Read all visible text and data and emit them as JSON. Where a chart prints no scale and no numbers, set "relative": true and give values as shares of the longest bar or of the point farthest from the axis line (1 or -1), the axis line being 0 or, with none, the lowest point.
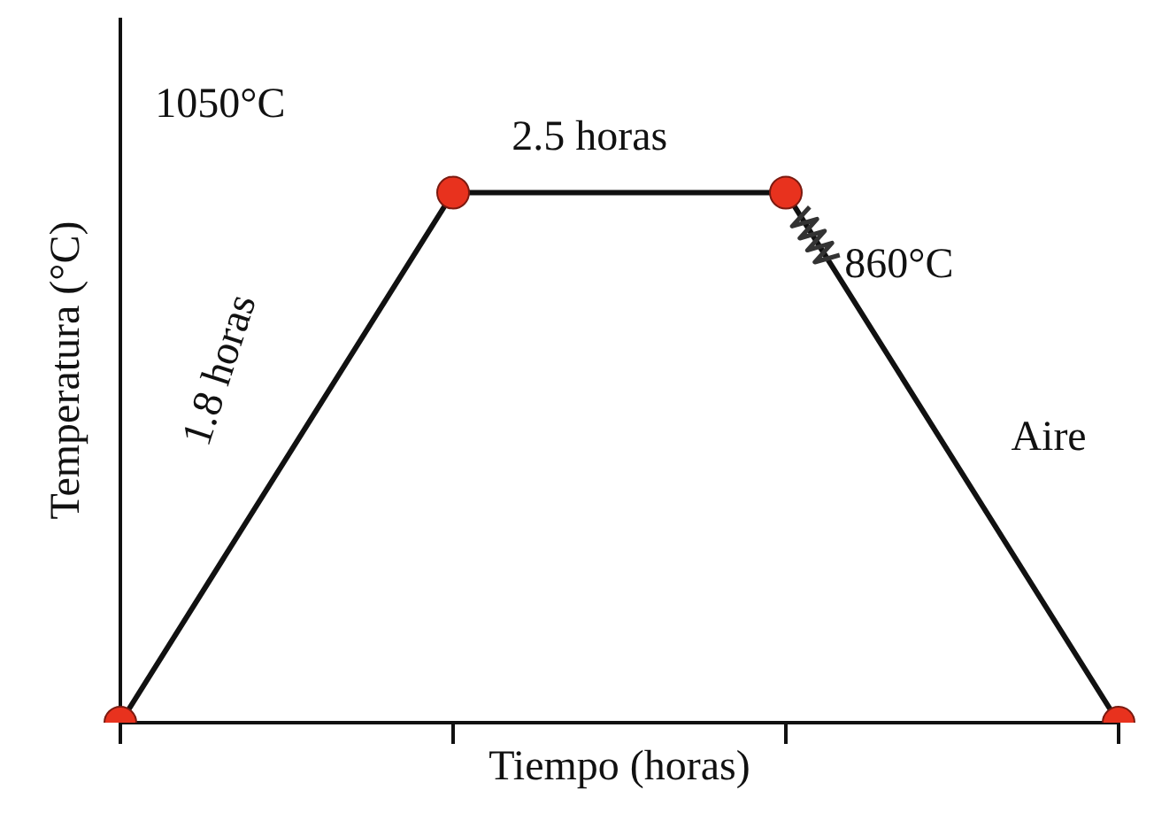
{
  "chart_data": {
    "type": "line",
    "relative": true,
    "xlabel": "Tiempo (horas)",
    "ylabel": "Temperatura (°C)",
    "categories": [
      null,
      null,
      null,
      null
    ],
    "series": [
      {
        "color": "#111111",
        "colors": [
          "#e8321e",
          "#e8321e",
          "#e8321e",
          "#e8321e"
        ],
        "values": [
          0,
          1,
          1,
          0
        ]
      }
    ],
    "marker": "circle",
    "line_style": "solid",
    "annotations": [
      "1050°C",
      "2.5 horas",
      "860°C",
      "Aire",
      "1.8 horas"
    ]
  }
}
